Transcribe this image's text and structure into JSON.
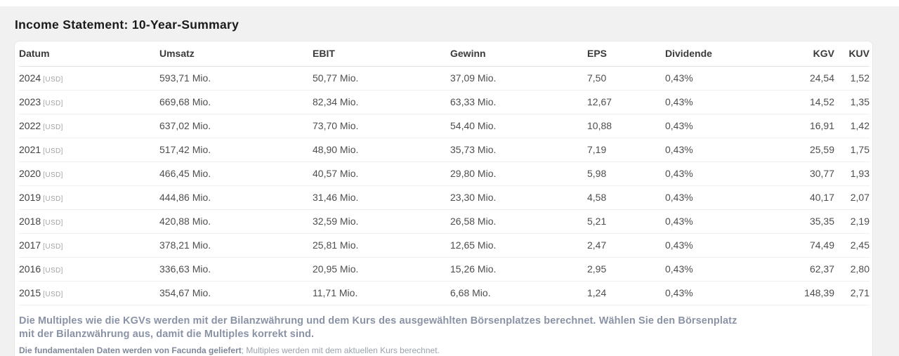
{
  "page": {
    "title": "Income Statement: 10-Year-Summary"
  },
  "colors": {
    "page_bg": "#f1f1f2",
    "card_bg": "#ffffff",
    "footnote_text": "#8a93a5",
    "currency_tag_text": "#a3a3a3"
  },
  "table": {
    "columns": [
      "Datum",
      "Umsatz",
      "EBIT",
      "Gewinn",
      "EPS",
      "Dividende",
      "KGV",
      "KUV"
    ],
    "currency_tag": "[USD]",
    "rows": [
      {
        "year": "2024",
        "umsatz": "593,71 Mio.",
        "ebit": "50,77 Mio.",
        "gewinn": "37,09 Mio.",
        "eps": "7,50",
        "dividende": "0,43%",
        "kgv": "24,54",
        "kuv": "1,52"
      },
      {
        "year": "2023",
        "umsatz": "669,68 Mio.",
        "ebit": "82,34 Mio.",
        "gewinn": "63,33 Mio.",
        "eps": "12,67",
        "dividende": "0,43%",
        "kgv": "14,52",
        "kuv": "1,35"
      },
      {
        "year": "2022",
        "umsatz": "637,02 Mio.",
        "ebit": "73,70 Mio.",
        "gewinn": "54,40 Mio.",
        "eps": "10,88",
        "dividende": "0,43%",
        "kgv": "16,91",
        "kuv": "1,42"
      },
      {
        "year": "2021",
        "umsatz": "517,42 Mio.",
        "ebit": "48,90 Mio.",
        "gewinn": "35,73 Mio.",
        "eps": "7,19",
        "dividende": "0,43%",
        "kgv": "25,59",
        "kuv": "1,75"
      },
      {
        "year": "2020",
        "umsatz": "466,45 Mio.",
        "ebit": "40,57 Mio.",
        "gewinn": "29,80 Mio.",
        "eps": "5,98",
        "dividende": "0,43%",
        "kgv": "30,77",
        "kuv": "1,93"
      },
      {
        "year": "2019",
        "umsatz": "444,86 Mio.",
        "ebit": "31,46 Mio.",
        "gewinn": "23,30 Mio.",
        "eps": "4,58",
        "dividende": "0,43%",
        "kgv": "40,17",
        "kuv": "2,07"
      },
      {
        "year": "2018",
        "umsatz": "420,88 Mio.",
        "ebit": "32,59 Mio.",
        "gewinn": "26,58 Mio.",
        "eps": "5,21",
        "dividende": "0,43%",
        "kgv": "35,35",
        "kuv": "2,19"
      },
      {
        "year": "2017",
        "umsatz": "378,21 Mio.",
        "ebit": "25,81 Mio.",
        "gewinn": "12,65 Mio.",
        "eps": "2,47",
        "dividende": "0,43%",
        "kgv": "74,49",
        "kuv": "2,45"
      },
      {
        "year": "2016",
        "umsatz": "336,63 Mio.",
        "ebit": "20,95 Mio.",
        "gewinn": "15,26 Mio.",
        "eps": "2,95",
        "dividende": "0,43%",
        "kgv": "62,37",
        "kuv": "2,80"
      },
      {
        "year": "2015",
        "umsatz": "354,67 Mio.",
        "ebit": "11,71 Mio.",
        "gewinn": "6,68 Mio.",
        "eps": "1,24",
        "dividende": "0,43%",
        "kgv": "148,39",
        "kuv": "2,71"
      }
    ]
  },
  "footnotes": {
    "primary": "Die Multiples wie die KGVs werden mit der Bilanzwährung und dem Kurs des ausgewählten Börsenplatzes berechnet. Wählen Sie den Börsenplatz mit der Bilanzwährung aus, damit die Multiples korrekt sind.",
    "secondary_bold": "Die fundamentalen Daten werden von Facunda geliefert",
    "secondary_rest": "; Multiples werden mit dem aktuellen Kurs berechnet."
  }
}
